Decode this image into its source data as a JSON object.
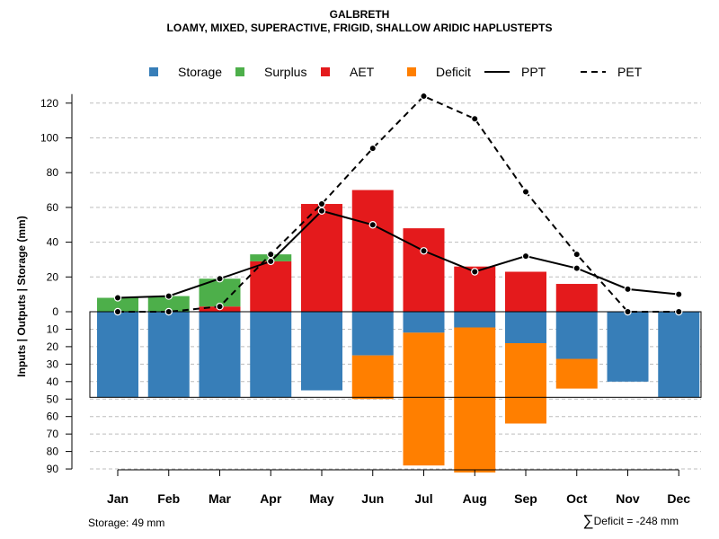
{
  "chart_data": {
    "type": "bar",
    "title": "GALBRETH",
    "subtitle": "LOAMY, MIXED, SUPERACTIVE, FRIGID, SHALLOW ARIDIC HAPLUSTEPTS",
    "ylabel": "Inputs | Outputs | Storage    (mm)",
    "categories": [
      "Jan",
      "Feb",
      "Mar",
      "Apr",
      "May",
      "Jun",
      "Jul",
      "Aug",
      "Sep",
      "Oct",
      "Nov",
      "Dec"
    ],
    "upper_axis": {
      "ylim": [
        0,
        130
      ],
      "ticks": [
        0,
        20,
        40,
        60,
        80,
        100,
        120
      ],
      "tick_labels": [
        "0",
        "20",
        "40",
        "60",
        "80",
        "100",
        "120"
      ]
    },
    "lower_axis": {
      "ylim": [
        0,
        90
      ],
      "ticks": [
        10,
        20,
        30,
        40,
        50,
        60,
        70,
        80,
        90
      ],
      "tick_labels": [
        "10",
        "20",
        "30",
        "40",
        "50",
        "60",
        "70",
        "80",
        "90"
      ]
    },
    "upper_series": [
      {
        "name": "AET",
        "color": "#e41a1c",
        "values": [
          0,
          0,
          3,
          29,
          62,
          70,
          48,
          26,
          23,
          16,
          0,
          0
        ]
      },
      {
        "name": "Surplus",
        "color": "#4daf4a",
        "values": [
          8,
          9,
          16,
          4,
          0,
          0,
          0,
          0,
          0,
          0,
          0,
          0
        ]
      }
    ],
    "lower_series": [
      {
        "name": "Storage",
        "color": "#377eb8",
        "values": [
          49,
          49,
          49,
          49,
          45,
          25,
          12,
          9,
          18,
          27,
          40,
          49
        ]
      },
      {
        "name": "Deficit",
        "color": "#ff7f00",
        "values": [
          0,
          0,
          0,
          0,
          0,
          25,
          76,
          83,
          46,
          17,
          0,
          0
        ]
      }
    ],
    "lines": [
      {
        "name": "PPT",
        "style": "solid",
        "values": [
          8,
          9,
          19,
          29,
          58,
          50,
          35,
          23,
          32,
          25,
          13,
          10
        ]
      },
      {
        "name": "PET",
        "style": "dashed",
        "values": [
          0,
          0,
          3,
          33,
          62,
          94,
          124,
          111,
          69,
          33,
          0,
          0
        ]
      }
    ],
    "storage_capacity": 49,
    "legend": [
      {
        "name": "Storage",
        "kind": "box",
        "color": "#377eb8"
      },
      {
        "name": "Surplus",
        "kind": "box",
        "color": "#4daf4a"
      },
      {
        "name": "AET",
        "kind": "box",
        "color": "#e41a1c"
      },
      {
        "name": "Deficit",
        "kind": "box",
        "color": "#ff7f00"
      },
      {
        "name": "PPT",
        "kind": "solid"
      },
      {
        "name": "PET",
        "kind": "dashed"
      }
    ],
    "legend_position": "top-center",
    "grid": true
  },
  "footer": {
    "storage_text": "Storage: 49 mm",
    "sigma": "∑",
    "deficit_text": "Deficit = -248 mm"
  }
}
